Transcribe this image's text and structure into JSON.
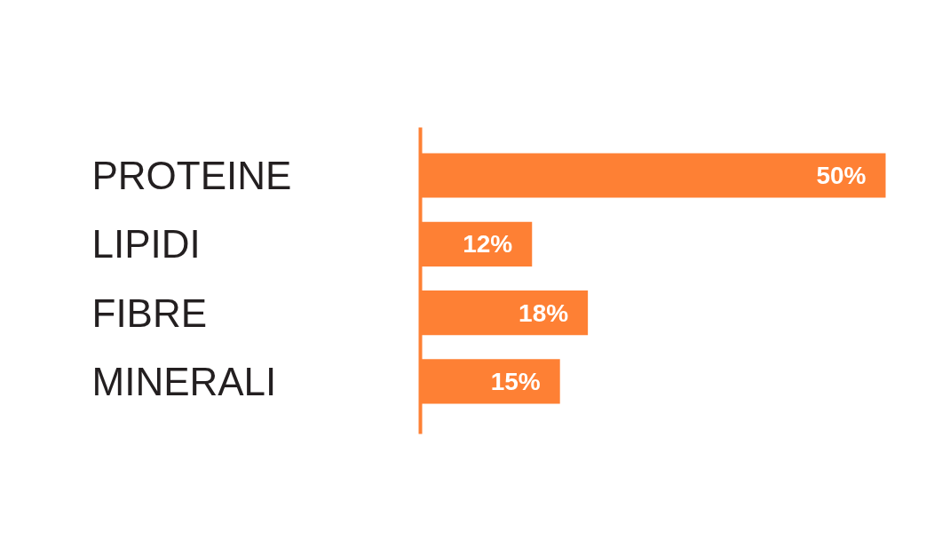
{
  "chart_data": {
    "type": "bar",
    "orientation": "horizontal",
    "categories": [
      "PROTEINE",
      "LIPIDI",
      "FIBRE",
      "MINERALI"
    ],
    "values": [
      50,
      12,
      18,
      15
    ],
    "value_labels": [
      "50%",
      "12%",
      "18%",
      "15%"
    ],
    "color": "#fe8034"
  }
}
